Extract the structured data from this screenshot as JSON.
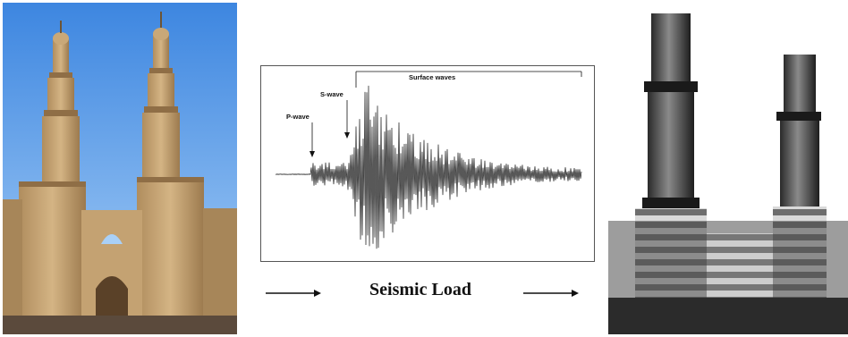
{
  "figure": {
    "caption": "Seismic Load",
    "seismogram": {
      "p_wave_label": "P-wave",
      "s_wave_label": "S-wave",
      "surface_waves_label": "Surface waves"
    }
  },
  "colors": {
    "sky_top": "#3d86e0",
    "sky_bottom": "#a9d0f7",
    "stone": "#c9a878",
    "stone_shadow": "#8f6e46",
    "trace": "#111111"
  }
}
